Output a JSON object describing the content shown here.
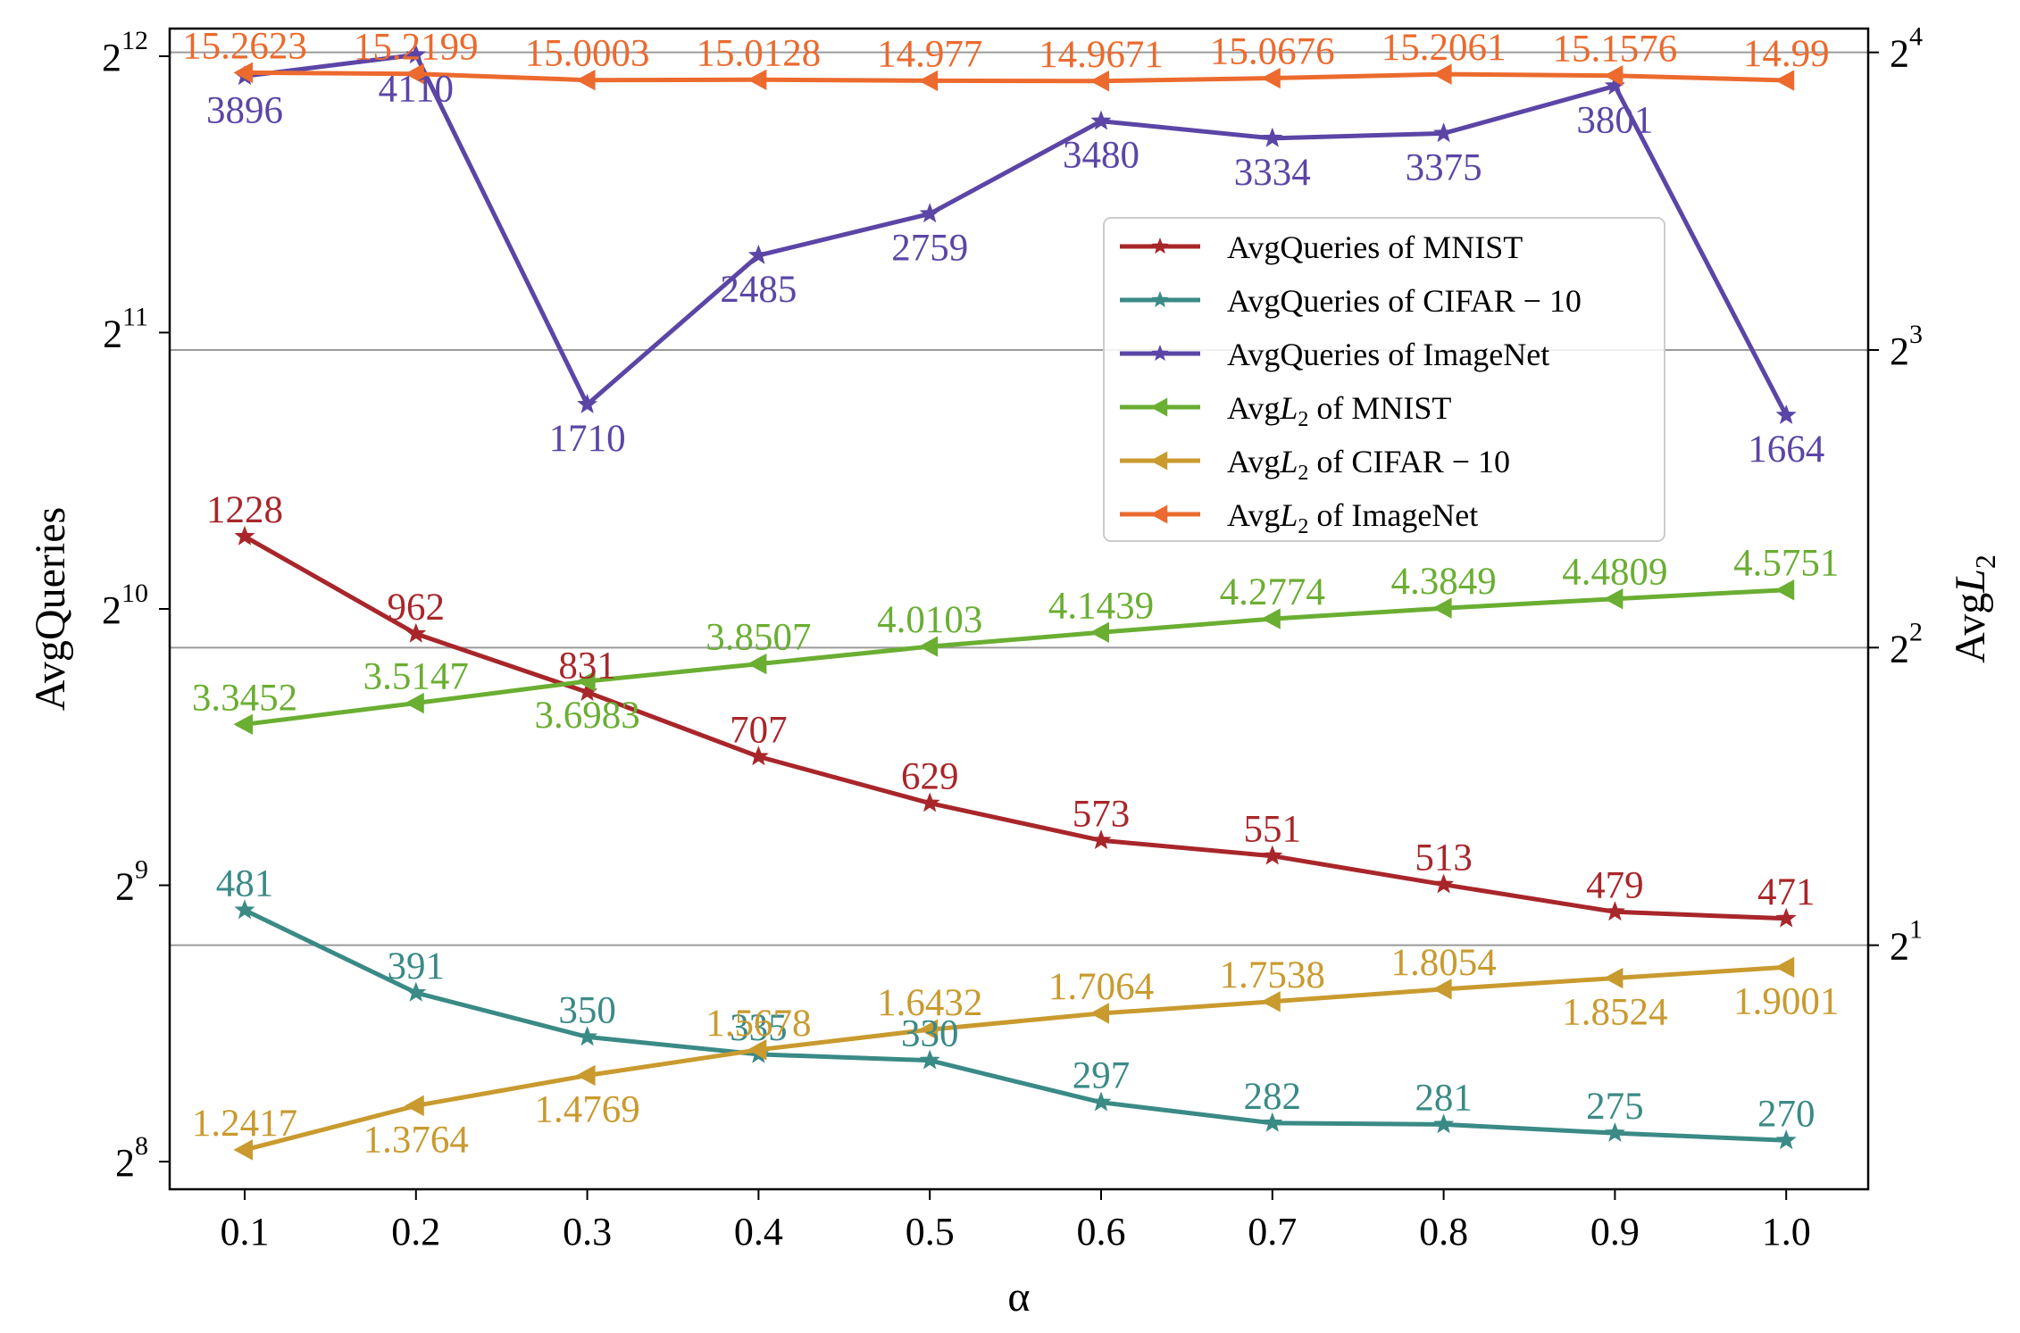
{
  "chart_data": {
    "type": "line",
    "title": "",
    "xlabel": "α",
    "ylabel_left": "AvgQueries",
    "ylabel_right": "AvgL2",
    "ylabel_right_parts": {
      "main": "Avg",
      "var": "L",
      "sub": "2"
    },
    "x": [
      0.1,
      0.2,
      0.3,
      0.4,
      0.5,
      0.6,
      0.7,
      0.8,
      0.9,
      1.0
    ],
    "x_tick_labels": [
      "0.1",
      "0.2",
      "0.3",
      "0.4",
      "0.5",
      "0.6",
      "0.7",
      "0.8",
      "0.9",
      "1.0"
    ],
    "y_left": {
      "scale": "log2",
      "range_exp": [
        7.9,
        12.1
      ],
      "ticks": [
        {
          "base": "2",
          "exp": "8"
        },
        {
          "base": "2",
          "exp": "9"
        },
        {
          "base": "2",
          "exp": "10"
        },
        {
          "base": "2",
          "exp": "11"
        },
        {
          "base": "2",
          "exp": "12"
        }
      ]
    },
    "y_right": {
      "scale": "log2",
      "range_exp": [
        0.18,
        4.08
      ],
      "ticks": [
        {
          "base": "2",
          "exp": "1"
        },
        {
          "base": "2",
          "exp": "2"
        },
        {
          "base": "2",
          "exp": "3"
        },
        {
          "base": "2",
          "exp": "4"
        }
      ],
      "gridlines_exp": [
        1,
        2,
        3,
        4
      ]
    },
    "series": [
      {
        "key": "q_mnist",
        "name": "AvgQueries of MNIST",
        "axis": "left",
        "marker": "star",
        "color": "#A8262A",
        "values": [
          1228,
          962,
          831,
          707,
          629,
          573,
          551,
          513,
          479,
          471
        ],
        "labels": [
          "1228",
          "962",
          "831",
          "707",
          "629",
          "573",
          "551",
          "513",
          "479",
          "471"
        ],
        "label_pos": [
          "above",
          "above",
          "above",
          "above",
          "above",
          "above",
          "above",
          "above",
          "above",
          "above"
        ]
      },
      {
        "key": "q_cifar",
        "name": "AvgQueries of CIFAR − 10",
        "axis": "left",
        "marker": "star",
        "color": "#3A8A86",
        "values": [
          481,
          391,
          350,
          335,
          330,
          297,
          282,
          281,
          275,
          270
        ],
        "labels": [
          "481",
          "391",
          "350",
          "335",
          "330",
          "297",
          "282",
          "281",
          "275",
          "270"
        ],
        "label_pos": [
          "above",
          "above",
          "above",
          "above",
          "above",
          "above",
          "above",
          "above",
          "above",
          "above"
        ]
      },
      {
        "key": "q_imagenet",
        "name": "AvgQueries of ImageNet",
        "axis": "left",
        "marker": "star",
        "color": "#5B45A6",
        "values": [
          3896,
          4110,
          1710,
          2485,
          2759,
          3480,
          3334,
          3375,
          3801,
          1664
        ],
        "labels": [
          "3896",
          "4110",
          "1710",
          "2485",
          "2759",
          "3480",
          "3334",
          "3375",
          "3801",
          "1664"
        ],
        "label_pos": [
          "below",
          "below",
          "below",
          "below",
          "below",
          "below",
          "below",
          "below",
          "below",
          "below"
        ]
      },
      {
        "key": "l2_mnist",
        "name": "AvgL2 of MNIST",
        "name_parts": {
          "main": "Avg",
          "var": "L",
          "sub": "2",
          "rest": " of MNIST"
        },
        "axis": "right",
        "marker": "triangle-left",
        "color": "#6AAE32",
        "values": [
          3.3452,
          3.5147,
          3.6983,
          3.8507,
          4.0103,
          4.1439,
          4.2774,
          4.3849,
          4.4809,
          4.5751
        ],
        "labels": [
          "3.3452",
          "3.5147",
          "3.6983",
          "3.8507",
          "4.0103",
          "4.1439",
          "4.2774",
          "4.3849",
          "4.4809",
          "4.5751"
        ],
        "label_pos": [
          "above",
          "above",
          "below",
          "above",
          "above",
          "above",
          "above",
          "above",
          "above",
          "above"
        ]
      },
      {
        "key": "l2_cifar",
        "name": "AvgL2 of CIFAR − 10",
        "name_parts": {
          "main": "Avg",
          "var": "L",
          "sub": "2",
          "rest": " of CIFAR − 10"
        },
        "axis": "right",
        "marker": "triangle-left",
        "color": "#C99A2E",
        "values": [
          1.2417,
          1.3764,
          1.4769,
          1.5678,
          1.6432,
          1.7064,
          1.7538,
          1.8054,
          1.8524,
          1.9001
        ],
        "labels": [
          "1.2417",
          "1.3764",
          "1.4769",
          "1.5678",
          "1.6432",
          "1.7064",
          "1.7538",
          "1.8054",
          "1.8524",
          "1.9001"
        ],
        "label_pos": [
          "above",
          "below",
          "below",
          "above",
          "above",
          "above",
          "above",
          "above",
          "below",
          "below"
        ]
      },
      {
        "key": "l2_imagenet",
        "name": "AvgL2 of ImageNet",
        "name_parts": {
          "main": "Avg",
          "var": "L",
          "sub": "2",
          "rest": " of ImageNet"
        },
        "axis": "right",
        "marker": "triangle-left",
        "color": "#EC6A2E",
        "values": [
          15.2623,
          15.2199,
          15.0003,
          15.0128,
          14.977,
          14.9671,
          15.0676,
          15.2061,
          15.1576,
          14.99
        ],
        "labels": [
          "15.2623",
          "15.2199",
          "15.0003",
          "15.0128",
          "14.977",
          "14.9671",
          "15.0676",
          "15.2061",
          "15.1576",
          "14.99"
        ],
        "label_pos": [
          "above",
          "above",
          "above",
          "above",
          "above",
          "above",
          "above",
          "above",
          "above",
          "above"
        ]
      }
    ],
    "legend": {
      "location": "center-right",
      "entries": [
        {
          "series": "q_mnist",
          "text": "AvgQueries of MNIST"
        },
        {
          "series": "q_cifar",
          "text": "AvgQueries of CIFAR − 10"
        },
        {
          "series": "q_imagenet",
          "text": "AvgQueries of ImageNet"
        },
        {
          "series": "l2_mnist",
          "text": "AvgL2 of MNIST"
        },
        {
          "series": "l2_cifar",
          "text": "AvgL2 of CIFAR − 10"
        },
        {
          "series": "l2_imagenet",
          "text": "AvgL2 of ImageNet"
        }
      ]
    },
    "grid": "right-axis horizontal lines"
  }
}
